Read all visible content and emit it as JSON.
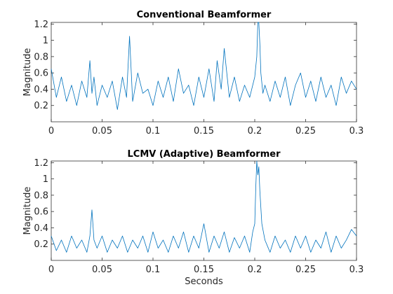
{
  "colors": {
    "series": "#0072bd",
    "axis": "#262626",
    "background": "#ffffff"
  },
  "chart_data": [
    {
      "type": "line",
      "title": "Conventional Beamformer",
      "xlabel": "",
      "ylabel": "Magnitude",
      "xlim": [
        0,
        0.3
      ],
      "ylim": [
        0,
        1.22
      ],
      "xticks": [
        0,
        0.05,
        0.1,
        0.15,
        0.2,
        0.25,
        0.3
      ],
      "xtick_labels": [
        "0",
        "0.05",
        "0.1",
        "0.15",
        "0.2",
        "0.25",
        "0.3"
      ],
      "yticks": [
        0.2,
        0.4,
        0.6,
        0.8,
        1,
        1.2
      ],
      "ytick_labels": [
        "0.2",
        "0.4",
        "0.6",
        "0.8",
        "1",
        "1.2"
      ],
      "grid": false,
      "series": [
        {
          "x": [
            0,
            0.005,
            0.01,
            0.015,
            0.02,
            0.025,
            0.03,
            0.035,
            0.038,
            0.04,
            0.042,
            0.045,
            0.05,
            0.055,
            0.06,
            0.065,
            0.07,
            0.074,
            0.077,
            0.08,
            0.085,
            0.09,
            0.095,
            0.1,
            0.105,
            0.11,
            0.115,
            0.12,
            0.125,
            0.13,
            0.135,
            0.14,
            0.145,
            0.15,
            0.155,
            0.16,
            0.163,
            0.167,
            0.17,
            0.175,
            0.18,
            0.185,
            0.19,
            0.195,
            0.2,
            0.202,
            0.203,
            0.204,
            0.205,
            0.206,
            0.208,
            0.21,
            0.215,
            0.22,
            0.225,
            0.23,
            0.235,
            0.24,
            0.245,
            0.25,
            0.255,
            0.26,
            0.265,
            0.27,
            0.275,
            0.28,
            0.285,
            0.29,
            0.295,
            0.3
          ],
          "y": [
            0.65,
            0.3,
            0.55,
            0.25,
            0.45,
            0.2,
            0.5,
            0.3,
            0.75,
            0.35,
            0.55,
            0.2,
            0.45,
            0.3,
            0.5,
            0.15,
            0.55,
            0.3,
            1.05,
            0.25,
            0.6,
            0.35,
            0.4,
            0.2,
            0.5,
            0.3,
            0.55,
            0.25,
            0.65,
            0.35,
            0.45,
            0.2,
            0.55,
            0.3,
            0.65,
            0.25,
            0.75,
            0.4,
            0.9,
            0.3,
            0.55,
            0.25,
            0.45,
            0.3,
            0.55,
            0.8,
            1.22,
            1.22,
            0.95,
            0.6,
            0.35,
            0.45,
            0.25,
            0.5,
            0.3,
            0.55,
            0.2,
            0.45,
            0.6,
            0.3,
            0.5,
            0.25,
            0.55,
            0.3,
            0.45,
            0.2,
            0.55,
            0.35,
            0.5,
            0.4
          ]
        }
      ]
    },
    {
      "type": "line",
      "title": "LCMV (Adaptive) Beamformer",
      "xlabel": "Seconds",
      "ylabel": "Magnitude",
      "xlim": [
        0,
        0.3
      ],
      "ylim": [
        0,
        1.22
      ],
      "xticks": [
        0,
        0.05,
        0.1,
        0.15,
        0.2,
        0.25,
        0.3
      ],
      "xtick_labels": [
        "0",
        "0.05",
        "0.1",
        "0.15",
        "0.2",
        "0.25",
        "0.3"
      ],
      "yticks": [
        0.2,
        0.4,
        0.6,
        0.8,
        1,
        1.2
      ],
      "ytick_labels": [
        "0.2",
        "0.4",
        "0.6",
        "0.8",
        "1",
        "1.2"
      ],
      "grid": false,
      "series": [
        {
          "x": [
            0,
            0.005,
            0.01,
            0.015,
            0.02,
            0.025,
            0.03,
            0.035,
            0.038,
            0.04,
            0.042,
            0.045,
            0.05,
            0.055,
            0.06,
            0.065,
            0.07,
            0.075,
            0.08,
            0.085,
            0.09,
            0.095,
            0.1,
            0.105,
            0.11,
            0.115,
            0.12,
            0.125,
            0.13,
            0.135,
            0.14,
            0.145,
            0.15,
            0.155,
            0.16,
            0.165,
            0.17,
            0.175,
            0.18,
            0.185,
            0.19,
            0.195,
            0.198,
            0.2,
            0.201,
            0.202,
            0.203,
            0.204,
            0.205,
            0.207,
            0.21,
            0.215,
            0.22,
            0.225,
            0.23,
            0.235,
            0.24,
            0.245,
            0.25,
            0.255,
            0.26,
            0.265,
            0.27,
            0.275,
            0.28,
            0.285,
            0.29,
            0.295,
            0.3
          ],
          "y": [
            0.3,
            0.12,
            0.25,
            0.1,
            0.3,
            0.15,
            0.25,
            0.1,
            0.3,
            0.62,
            0.25,
            0.15,
            0.3,
            0.1,
            0.25,
            0.15,
            0.3,
            0.1,
            0.25,
            0.15,
            0.3,
            0.1,
            0.35,
            0.15,
            0.25,
            0.1,
            0.3,
            0.15,
            0.35,
            0.1,
            0.3,
            0.15,
            0.45,
            0.1,
            0.3,
            0.15,
            0.35,
            0.1,
            0.28,
            0.15,
            0.3,
            0.1,
            0.35,
            0.45,
            0.9,
            1.22,
            1.05,
            1.15,
            0.85,
            0.45,
            0.25,
            0.1,
            0.3,
            0.15,
            0.25,
            0.1,
            0.3,
            0.15,
            0.3,
            0.1,
            0.25,
            0.15,
            0.35,
            0.1,
            0.3,
            0.15,
            0.25,
            0.38,
            0.3
          ]
        }
      ]
    }
  ]
}
